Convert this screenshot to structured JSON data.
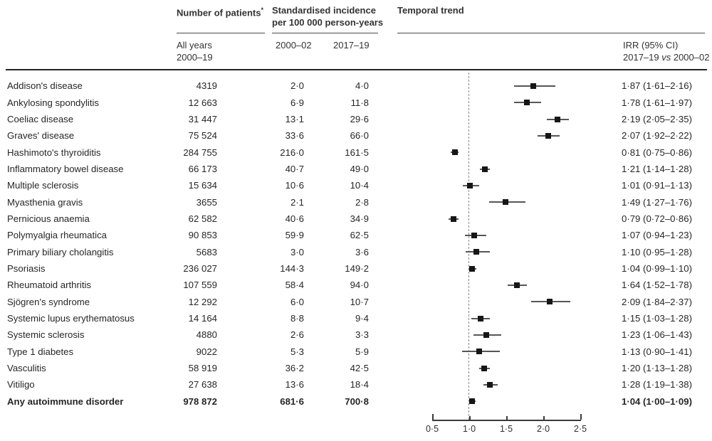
{
  "figure": {
    "col_headers": {
      "patients": "Number of patients",
      "patients_marker": "*",
      "incidence_line1": "Standardised incidence",
      "incidence_line2": "per 100 000 person-years",
      "temporal": "Temporal trend"
    },
    "sub_headers": {
      "all_years_line1": "All years",
      "all_years_line2": "2000–19",
      "period1": "2000–02",
      "period2": "2017–19",
      "irr_line1": "IRR (95% CI)",
      "irr_line2_prefix": "2017–19 ",
      "irr_line2_vs": "vs",
      "irr_line2_suffix": " 2000–02"
    },
    "colors": {
      "text": "#262626",
      "marker": "#161616",
      "ci_line": "#565656",
      "reference_dash": "#8a8a8a"
    },
    "rows": [
      {
        "label": "Addison's disease",
        "patients": "4319",
        "inc_2000_02": "2·0",
        "inc_2017_19": "4·0",
        "irr_ci": "1·87 (1·61–2·16)",
        "bold": false
      },
      {
        "label": "Ankylosing spondylitis",
        "patients": "12 663",
        "inc_2000_02": "6·9",
        "inc_2017_19": "11·8",
        "irr_ci": "1·78 (1·61–1·97)",
        "bold": false
      },
      {
        "label": "Coeliac disease",
        "patients": "31 447",
        "inc_2000_02": "13·1",
        "inc_2017_19": "29·6",
        "irr_ci": "2·19 (2·05–2·35)",
        "bold": false
      },
      {
        "label": "Graves' disease",
        "patients": "75 524",
        "inc_2000_02": "33·6",
        "inc_2017_19": "66·0",
        "irr_ci": "2·07 (1·92–2·22)",
        "bold": false
      },
      {
        "label": "Hashimoto's thyroiditis",
        "patients": "284 755",
        "inc_2000_02": "216·0",
        "inc_2017_19": "161·5",
        "irr_ci": "0·81 (0·75–0·86)",
        "bold": false
      },
      {
        "label": "Inflammatory bowel disease",
        "patients": "66 173",
        "inc_2000_02": "40·7",
        "inc_2017_19": "49·0",
        "irr_ci": "1·21 (1·14–1·28)",
        "bold": false
      },
      {
        "label": "Multiple sclerosis",
        "patients": "15 634",
        "inc_2000_02": "10·6",
        "inc_2017_19": "10·4",
        "irr_ci": "1·01 (0·91–1·13)",
        "bold": false
      },
      {
        "label": "Myasthenia gravis",
        "patients": "3655",
        "inc_2000_02": "2·1",
        "inc_2017_19": "2·8",
        "irr_ci": "1·49 (1·27–1·76)",
        "bold": false
      },
      {
        "label": "Pernicious anaemia",
        "patients": "62 582",
        "inc_2000_02": "40·6",
        "inc_2017_19": "34·9",
        "irr_ci": "0·79 (0·72–0·86)",
        "bold": false
      },
      {
        "label": "Polymyalgia rheumatica",
        "patients": "90 853",
        "inc_2000_02": "59·9",
        "inc_2017_19": "62·5",
        "irr_ci": "1·07 (0·94–1·23)",
        "bold": false
      },
      {
        "label": "Primary biliary cholangitis",
        "patients": "5683",
        "inc_2000_02": "3·0",
        "inc_2017_19": "3·6",
        "irr_ci": "1·10 (0·95–1·28)",
        "bold": false
      },
      {
        "label": "Psoriasis",
        "patients": "236 027",
        "inc_2000_02": "144·3",
        "inc_2017_19": "149·2",
        "irr_ci": "1·04 (0·99–1·10)",
        "bold": false
      },
      {
        "label": "Rheumatoid arthritis",
        "patients": "107 559",
        "inc_2000_02": "58·4",
        "inc_2017_19": "94·0",
        "irr_ci": "1·64 (1·52–1·78)",
        "bold": false
      },
      {
        "label": "Sjögren's syndrome",
        "patients": "12 292",
        "inc_2000_02": "6·0",
        "inc_2017_19": "10·7",
        "irr_ci": "2·09 (1·84–2·37)",
        "bold": false
      },
      {
        "label": "Systemic lupus erythematosus",
        "patients": "14 164",
        "inc_2000_02": "8·8",
        "inc_2017_19": "9·4",
        "irr_ci": "1·15 (1·03–1·28)",
        "bold": false
      },
      {
        "label": "Systemic sclerosis",
        "patients": "4880",
        "inc_2000_02": "2·6",
        "inc_2017_19": "3·3",
        "irr_ci": "1·23 (1·06–1·43)",
        "bold": false
      },
      {
        "label": "Type 1 diabetes",
        "patients": "9022",
        "inc_2000_02": "5·3",
        "inc_2017_19": "5·9",
        "irr_ci": "1·13 (0·90–1·41)",
        "bold": false
      },
      {
        "label": "Vasculitis",
        "patients": "58 919",
        "inc_2000_02": "36·2",
        "inc_2017_19": "42·5",
        "irr_ci": "1·20 (1·13–1·28)",
        "bold": false
      },
      {
        "label": "Vitiligo",
        "patients": "27 638",
        "inc_2000_02": "13·6",
        "inc_2017_19": "18·4",
        "irr_ci": "1·28 (1·19–1·38)",
        "bold": false
      },
      {
        "label": "Any autoimmune disorder",
        "patients": "978 872",
        "inc_2000_02": "681·6",
        "inc_2017_19": "700·8",
        "irr_ci": "1·04 (1·00–1·09)",
        "bold": true
      }
    ]
  },
  "chart_data": {
    "type": "scatter",
    "subtype": "forest-plot",
    "title": "Temporal trend",
    "xlabel": "IRR (95% CI) 2017–19 vs 2000–02",
    "x_range": [
      0.5,
      2.5
    ],
    "x_ticks": [
      0.5,
      1.0,
      1.5,
      2.0,
      2.5
    ],
    "x_tick_labels": [
      "0·5",
      "1·0",
      "1·5",
      "2·0",
      "2·5"
    ],
    "reference_line_x": 1.0,
    "grid": false,
    "categories": [
      "Addison's disease",
      "Ankylosing spondylitis",
      "Coeliac disease",
      "Graves' disease",
      "Hashimoto's thyroiditis",
      "Inflammatory bowel disease",
      "Multiple sclerosis",
      "Myasthenia gravis",
      "Pernicious anaemia",
      "Polymyalgia rheumatica",
      "Primary biliary cholangitis",
      "Psoriasis",
      "Rheumatoid arthritis",
      "Sjögren's syndrome",
      "Systemic lupus erythematosus",
      "Systemic sclerosis",
      "Type 1 diabetes",
      "Vasculitis",
      "Vitiligo",
      "Any autoimmune disorder"
    ],
    "series": [
      {
        "name": "IRR",
        "values": [
          1.87,
          1.78,
          2.19,
          2.07,
          0.81,
          1.21,
          1.01,
          1.49,
          0.79,
          1.07,
          1.1,
          1.04,
          1.64,
          2.09,
          1.15,
          1.23,
          1.13,
          1.2,
          1.28,
          1.04
        ]
      },
      {
        "name": "CI lower",
        "values": [
          1.61,
          1.61,
          2.05,
          1.92,
          0.75,
          1.14,
          0.91,
          1.27,
          0.72,
          0.94,
          0.95,
          0.99,
          1.52,
          1.84,
          1.03,
          1.06,
          0.9,
          1.13,
          1.19,
          1.0
        ]
      },
      {
        "name": "CI upper",
        "values": [
          2.16,
          1.97,
          2.35,
          2.22,
          0.86,
          1.28,
          1.13,
          1.76,
          0.86,
          1.23,
          1.28,
          1.1,
          1.78,
          2.37,
          1.28,
          1.43,
          1.41,
          1.28,
          1.38,
          1.09
        ]
      }
    ]
  }
}
